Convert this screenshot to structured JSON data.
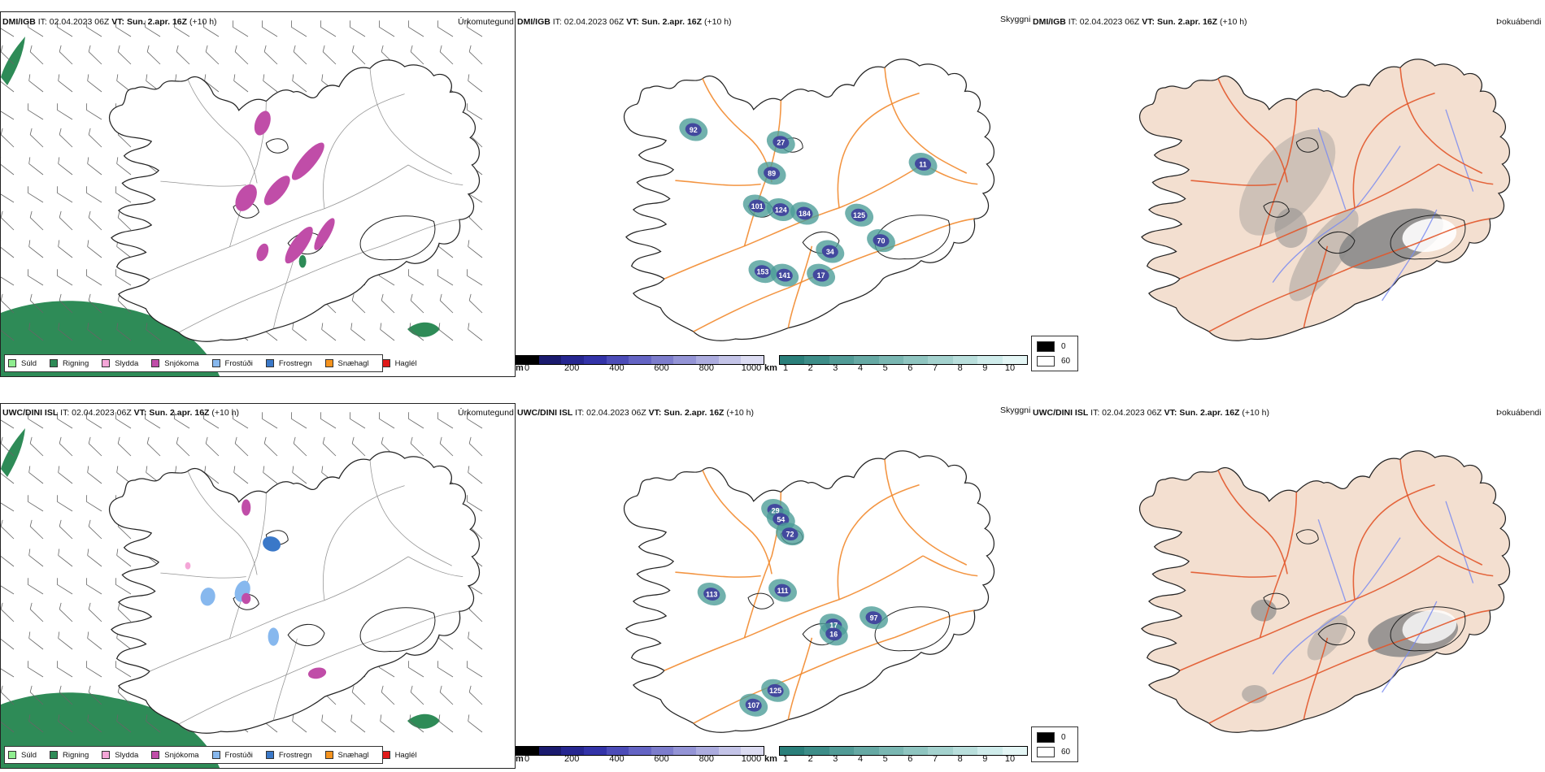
{
  "rows": [
    {
      "precip_header": {
        "model": "DMI/IGB",
        "it": "IT: 02.04.2023 06Z",
        "vt_label": "VT:",
        "vt": "Sun. 2.apr. 16Z",
        "lead": "(+10 h)",
        "type_label": "Úrkomutegund"
      },
      "ceiling_header": {
        "model": "DMI/IGB",
        "it": "IT: 02.04.2023 06Z",
        "vt_label": "VT:",
        "vt": "Sun. 2.apr. 16Z",
        "lead": "(+10 h)",
        "type_label": "Skyggni"
      },
      "fog_header": {
        "model": "DMI/IGB",
        "it": "IT: 02.04.2023 06Z",
        "vt_label": "VT:",
        "vt": "Sun. 2.apr. 16Z",
        "lead": "(+10 h)",
        "type_label": "Þokuábendi"
      },
      "cloudbase_labels": [
        "92",
        "27",
        "89",
        "101",
        "124",
        "184",
        "125",
        "70",
        "34",
        "153",
        "141",
        "17",
        "11"
      ],
      "scenario": "dmi"
    },
    {
      "precip_header": {
        "model": "UWC/DINI ISL",
        "it": "IT: 02.04.2023 06Z",
        "vt_label": "VT:",
        "vt": "Sun. 2.apr. 16Z",
        "lead": "(+10 h)",
        "type_label": "Úrkomutegund"
      },
      "ceiling_header": {
        "model": "UWC/DINI ISL",
        "it": "IT: 02.04.2023 06Z",
        "vt_label": "VT:",
        "vt": "Sun. 2.apr. 16Z",
        "lead": "(+10 h)",
        "type_label": "Skyggni"
      },
      "fog_header": {
        "model": "UWC/DINI ISL",
        "it": "IT: 02.04.2023 06Z",
        "vt_label": "VT:",
        "vt": "Sun. 2.apr. 16Z",
        "lead": "(+10 h)",
        "type_label": "Þokuábendi"
      },
      "cloudbase_labels": [
        "29",
        "54",
        "72",
        "113",
        "111",
        "97",
        "17",
        "16",
        "125",
        "107"
      ],
      "scenario": "uwc"
    }
  ],
  "precip_legend": [
    {
      "label": "Súld",
      "color": "#90ee90"
    },
    {
      "label": "Rigning",
      "color": "#2e8b57"
    },
    {
      "label": "Slydda",
      "color": "#f4a6d7"
    },
    {
      "label": "Snjókoma",
      "color": "#c04da8"
    },
    {
      "label": "Frostúði",
      "color": "#87b8ee"
    },
    {
      "label": "Frostregn",
      "color": "#3a78c8"
    },
    {
      "label": "Snæhagl",
      "color": "#f5931e"
    },
    {
      "label": "Haglél",
      "color": "#e01a1a"
    }
  ],
  "ceiling_bar": {
    "unit": "m",
    "ticks": [
      "0",
      "200",
      "400",
      "600",
      "800",
      "1000"
    ],
    "colors": [
      "#000000",
      "#1a1a6e",
      "#262690",
      "#3333a8",
      "#4c4cb8",
      "#6464c4",
      "#7c7ccc",
      "#9494d6",
      "#acacdf",
      "#c4c4e8",
      "#dcdcf2"
    ]
  },
  "visibility_bar": {
    "unit": "km",
    "ticks": [
      "1",
      "2",
      "3",
      "4",
      "5",
      "6",
      "7",
      "8",
      "9",
      "10"
    ],
    "colors": [
      "#2a7f7a",
      "#3d8d88",
      "#519b96",
      "#66a9a4",
      "#7ab7b2",
      "#8fc5c0",
      "#a4d2ce",
      "#b9dfdc",
      "#cfeceb",
      "#e4f6f5"
    ]
  },
  "fog_legend": {
    "high": "0",
    "low": "60",
    "high_color": "#000000",
    "low_color": "#ffffff"
  }
}
